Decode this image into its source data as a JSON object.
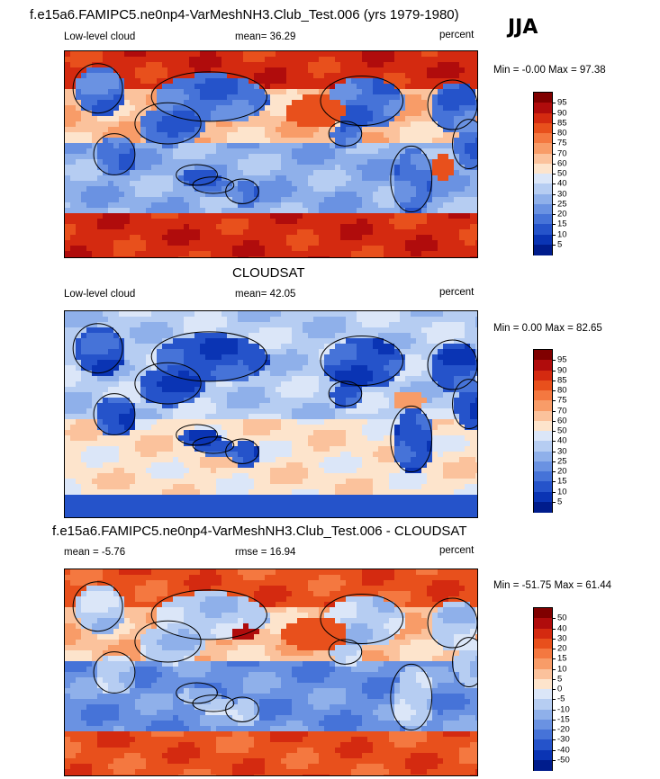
{
  "season": "JJA",
  "panels": [
    {
      "title": "f.e15a6.FAMIPC5.ne0np4-VarMeshNH3.Club_Test.006 (yrs 1979-1980)",
      "left_label": "Low-level cloud",
      "mid_label": "mean=  36.29",
      "right_label": "percent",
      "minmax": "Min =  -0.00 Max =  97.38",
      "field": "model"
    },
    {
      "title": "CLOUDSAT",
      "left_label": "Low-level cloud",
      "mid_label": "mean=  42.05",
      "right_label": "percent",
      "minmax": "Min =   0.00 Max =  82.65",
      "field": "obs"
    },
    {
      "title": "f.e15a6.FAMIPC5.ne0np4-VarMeshNH3.Club_Test.006 - CLOUDSAT",
      "left_label": "mean =  -5.76",
      "mid_label": "rmse =  16.94",
      "right_label": "percent",
      "minmax": "Min = -51.75 Max =  61.44",
      "field": "diff"
    }
  ],
  "colorbar_abs": {
    "labels": [
      "95",
      "90",
      "85",
      "80",
      "75",
      "70",
      "60",
      "50",
      "40",
      "30",
      "25",
      "20",
      "15",
      "10",
      "5"
    ],
    "colors": [
      "#800000",
      "#b00c0c",
      "#d42a10",
      "#e8501c",
      "#f47840",
      "#f89c68",
      "#fbc29c",
      "#fde4cc",
      "#dbe6f8",
      "#b6cdf2",
      "#8fb0ea",
      "#6a92e2",
      "#4673d8",
      "#2553ca",
      "#0a34b4",
      "#001c8c"
    ]
  },
  "colorbar_diff": {
    "labels": [
      "50",
      "40",
      "30",
      "20",
      "15",
      "10",
      "5",
      "0",
      "-5",
      "-10",
      "-15",
      "-20",
      "-30",
      "-40",
      "-50"
    ],
    "colors": [
      "#800000",
      "#b00c0c",
      "#d42a10",
      "#e8501c",
      "#f47840",
      "#f89c68",
      "#fbc29c",
      "#fde4cc",
      "#dbe6f8",
      "#b6cdf2",
      "#8fb0ea",
      "#6a92e2",
      "#4673d8",
      "#2553ca",
      "#0a34b4",
      "#001c8c"
    ]
  }
}
